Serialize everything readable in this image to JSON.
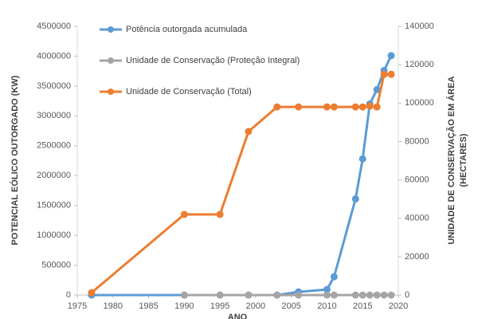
{
  "chart_data": {
    "type": "line",
    "xlabel": "ANO",
    "ylabel": "POTENCIAL EÓLICO OUTORGADO (KW)",
    "y2label": [
      "UNIDADE DE CONSERVAÇÃO EM ÁREA",
      "(HECTARES)"
    ],
    "xlim": [
      1975,
      2020
    ],
    "xticks": [
      1975,
      1980,
      1985,
      1990,
      1995,
      2000,
      2005,
      2010,
      2015,
      2020
    ],
    "ylim": [
      0,
      4500000
    ],
    "yticks": [
      0,
      500000,
      1000000,
      1500000,
      2000000,
      2500000,
      3000000,
      3500000,
      4000000,
      4500000
    ],
    "y2lim": [
      0,
      140000
    ],
    "y2ticks": [
      0,
      20000,
      40000,
      60000,
      80000,
      100000,
      120000,
      140000
    ],
    "grid": false,
    "series": [
      {
        "name": "Potência outorgada acumulada",
        "color": "#5b9bd5",
        "axis": "y",
        "x": [
          1977,
          1990,
          1995,
          1999,
          2003,
          2006,
          2010,
          2011,
          2014,
          2015,
          2016,
          2017,
          2018,
          2019
        ],
        "values": [
          0,
          0,
          0,
          0,
          0,
          53000,
          93000,
          307000,
          1610000,
          2280000,
          3200000,
          3440000,
          3760000,
          4010000
        ]
      },
      {
        "name": "Unidade de Conservação (Proteção Integral)",
        "color": "#a5a5a5",
        "axis": "y2",
        "x": [
          1990,
          1995,
          1999,
          2003,
          2006,
          2010,
          2011,
          2014,
          2015,
          2016,
          2017,
          2018,
          2019
        ],
        "values": [
          0,
          0,
          0,
          0,
          0,
          0,
          0,
          0,
          0,
          0,
          0,
          0,
          0
        ]
      },
      {
        "name": "Unidade de Conservação (Total)",
        "color": "#ed7d31",
        "axis": "y2",
        "x": [
          1977,
          1990,
          1995,
          1999,
          2003,
          2006,
          2010,
          2011,
          2014,
          2015,
          2016,
          2017,
          2018,
          2019
        ],
        "values": [
          1250,
          42000,
          42000,
          85200,
          98000,
          98000,
          98000,
          98000,
          98000,
          98000,
          98500,
          98000,
          115000,
          115000
        ]
      }
    ]
  }
}
